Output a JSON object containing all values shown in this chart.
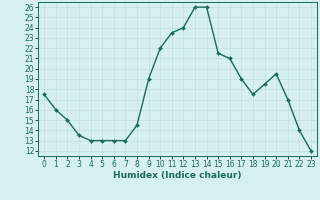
{
  "x": [
    0,
    1,
    2,
    3,
    4,
    5,
    6,
    7,
    8,
    9,
    10,
    11,
    12,
    13,
    14,
    15,
    16,
    17,
    18,
    19,
    20,
    21,
    22,
    23
  ],
  "y": [
    17.5,
    16.0,
    15.0,
    13.5,
    13.0,
    13.0,
    13.0,
    13.0,
    14.5,
    19.0,
    22.0,
    23.5,
    24.0,
    26.0,
    26.0,
    21.5,
    21.0,
    19.0,
    17.5,
    18.5,
    19.5,
    17.0,
    14.0,
    12.0
  ],
  "xlabel": "Humidex (Indice chaleur)",
  "line_color": "#1a6b5a",
  "marker": "D",
  "marker_size": 2,
  "bg_color": "#d6f0ef",
  "grid_color_major": "#c8e8e6",
  "grid_color_minor": "#e8b8b8",
  "ylim_min": 11.5,
  "ylim_max": 26.5,
  "xlim_min": -0.5,
  "xlim_max": 23.5,
  "yticks": [
    12,
    13,
    14,
    15,
    16,
    17,
    18,
    19,
    20,
    21,
    22,
    23,
    24,
    25,
    26
  ],
  "xticks": [
    0,
    1,
    2,
    3,
    4,
    5,
    6,
    7,
    8,
    9,
    10,
    11,
    12,
    13,
    14,
    15,
    16,
    17,
    18,
    19,
    20,
    21,
    22,
    23
  ],
  "tick_fontsize": 5.5,
  "label_fontsize": 6.5,
  "fig_width": 3.2,
  "fig_height": 2.0,
  "dpi": 100
}
